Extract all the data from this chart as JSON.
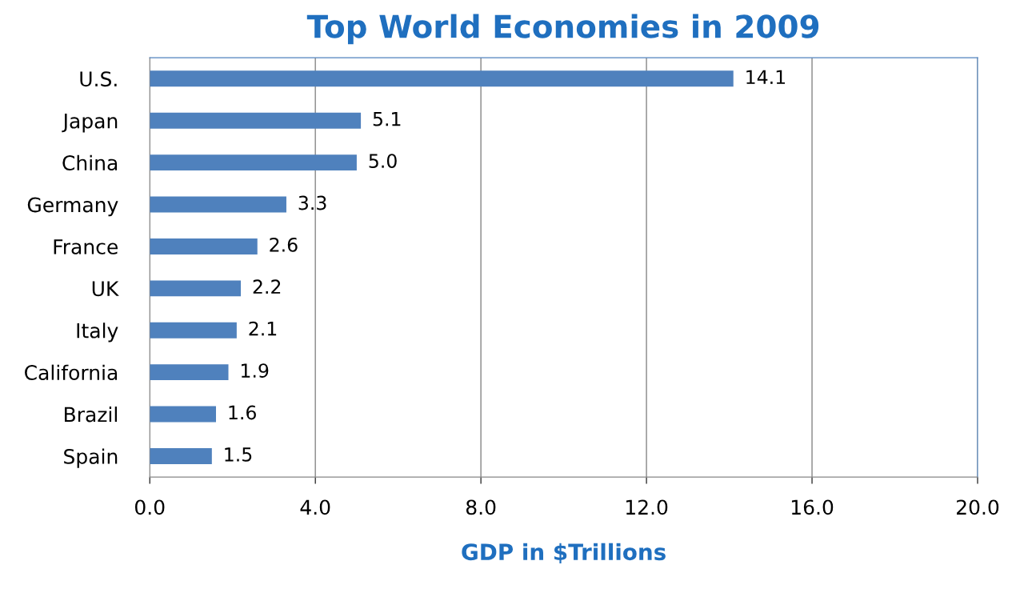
{
  "chart_data": {
    "type": "bar",
    "orientation": "horizontal",
    "title": "Top World Economies in 2009",
    "xlabel": "GDP in $Trillions",
    "categories": [
      "U.S.",
      "Japan",
      "China",
      "Germany",
      "France",
      "UK",
      "Italy",
      "California",
      "Brazil",
      "Spain"
    ],
    "values": [
      14.1,
      5.1,
      5.0,
      3.3,
      2.6,
      2.2,
      2.1,
      1.9,
      1.6,
      1.5
    ],
    "color": "#4f81bd",
    "value_labels": [
      "14.1",
      "5.1",
      "5.0",
      "3.3",
      "2.6",
      "2.2",
      "2.1",
      "1.9",
      "1.6",
      "1.5"
    ],
    "xlim": [
      0,
      20
    ],
    "xticks": [
      {
        "value": 0,
        "label": "0.0"
      },
      {
        "value": 4,
        "label": "4.0"
      },
      {
        "value": 8,
        "label": "8.0"
      },
      {
        "value": 12,
        "label": "12.0"
      },
      {
        "value": 16,
        "label": "16.0"
      },
      {
        "value": 20,
        "label": "20.0"
      }
    ],
    "grid": "x",
    "legend": false
  }
}
